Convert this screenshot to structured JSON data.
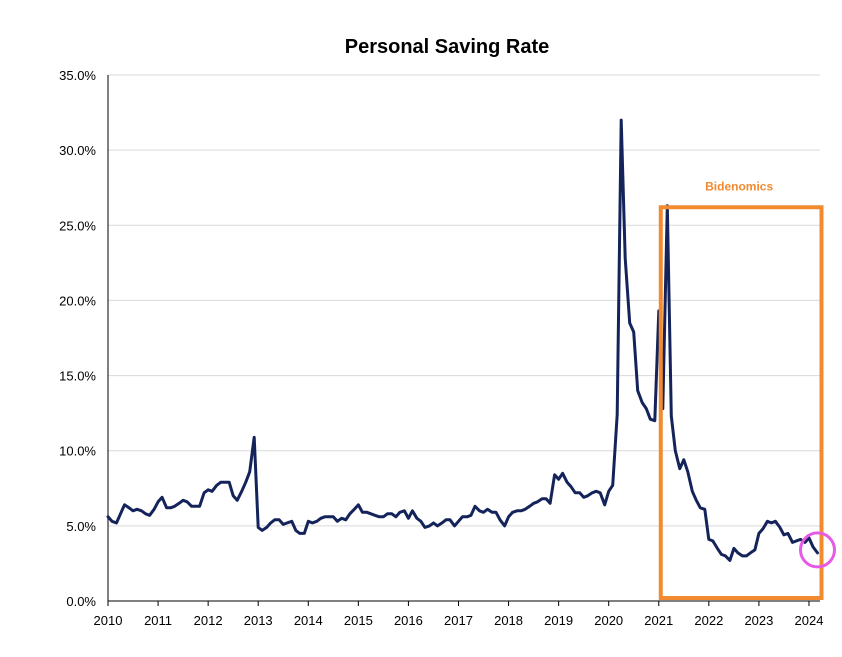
{
  "chart_data": {
    "type": "line",
    "title": "Personal Saving Rate",
    "xlabel": "",
    "ylabel": "",
    "x_tick_labels": [
      "2010",
      "2011",
      "2012",
      "2013",
      "2014",
      "2015",
      "2016",
      "2017",
      "2018",
      "2019",
      "2020",
      "2021",
      "2022",
      "2023",
      "2024"
    ],
    "y_tick_labels": [
      "0.0%",
      "5.0%",
      "10.0%",
      "15.0%",
      "20.0%",
      "25.0%",
      "30.0%",
      "35.0%"
    ],
    "y_ticks": [
      0,
      5,
      10,
      15,
      20,
      25,
      30,
      35
    ],
    "x_ticks": [
      2010,
      2011,
      2012,
      2013,
      2014,
      2015,
      2016,
      2017,
      2018,
      2019,
      2020,
      2021,
      2022,
      2023,
      2024
    ],
    "xlim": [
      2010,
      2024.25
    ],
    "ylim": [
      0,
      35
    ],
    "grid": true,
    "series": [
      {
        "name": "Personal Saving Rate",
        "color": "#14245a",
        "points": [
          [
            2010.0,
            5.6
          ],
          [
            2010.08,
            5.3
          ],
          [
            2010.17,
            5.2
          ],
          [
            2010.25,
            5.8
          ],
          [
            2010.33,
            6.4
          ],
          [
            2010.42,
            6.2
          ],
          [
            2010.5,
            6.0
          ],
          [
            2010.58,
            6.1
          ],
          [
            2010.67,
            6.0
          ],
          [
            2010.75,
            5.8
          ],
          [
            2010.83,
            5.7
          ],
          [
            2010.92,
            6.1
          ],
          [
            2011.0,
            6.6
          ],
          [
            2011.08,
            6.9
          ],
          [
            2011.17,
            6.2
          ],
          [
            2011.25,
            6.2
          ],
          [
            2011.33,
            6.3
          ],
          [
            2011.42,
            6.5
          ],
          [
            2011.5,
            6.7
          ],
          [
            2011.58,
            6.6
          ],
          [
            2011.67,
            6.3
          ],
          [
            2011.75,
            6.3
          ],
          [
            2011.83,
            6.3
          ],
          [
            2011.92,
            7.2
          ],
          [
            2012.0,
            7.4
          ],
          [
            2012.08,
            7.3
          ],
          [
            2012.17,
            7.7
          ],
          [
            2012.25,
            7.9
          ],
          [
            2012.33,
            7.9
          ],
          [
            2012.42,
            7.9
          ],
          [
            2012.5,
            7.0
          ],
          [
            2012.58,
            6.7
          ],
          [
            2012.67,
            7.3
          ],
          [
            2012.75,
            7.9
          ],
          [
            2012.83,
            8.6
          ],
          [
            2012.92,
            10.9
          ],
          [
            2013.0,
            4.9
          ],
          [
            2013.08,
            4.7
          ],
          [
            2013.17,
            4.9
          ],
          [
            2013.25,
            5.2
          ],
          [
            2013.33,
            5.4
          ],
          [
            2013.42,
            5.4
          ],
          [
            2013.5,
            5.1
          ],
          [
            2013.58,
            5.2
          ],
          [
            2013.67,
            5.3
          ],
          [
            2013.75,
            4.7
          ],
          [
            2013.83,
            4.5
          ],
          [
            2013.92,
            4.5
          ],
          [
            2014.0,
            5.3
          ],
          [
            2014.08,
            5.2
          ],
          [
            2014.17,
            5.3
          ],
          [
            2014.25,
            5.5
          ],
          [
            2014.33,
            5.6
          ],
          [
            2014.42,
            5.6
          ],
          [
            2014.5,
            5.6
          ],
          [
            2014.58,
            5.3
          ],
          [
            2014.67,
            5.5
          ],
          [
            2014.75,
            5.4
          ],
          [
            2014.83,
            5.8
          ],
          [
            2014.92,
            6.1
          ],
          [
            2015.0,
            6.4
          ],
          [
            2015.08,
            5.9
          ],
          [
            2015.17,
            5.9
          ],
          [
            2015.25,
            5.8
          ],
          [
            2015.33,
            5.7
          ],
          [
            2015.42,
            5.6
          ],
          [
            2015.5,
            5.6
          ],
          [
            2015.58,
            5.8
          ],
          [
            2015.67,
            5.8
          ],
          [
            2015.75,
            5.6
          ],
          [
            2015.83,
            5.9
          ],
          [
            2015.92,
            6.0
          ],
          [
            2016.0,
            5.5
          ],
          [
            2016.08,
            6.0
          ],
          [
            2016.17,
            5.5
          ],
          [
            2016.25,
            5.3
          ],
          [
            2016.33,
            4.9
          ],
          [
            2016.42,
            5.0
          ],
          [
            2016.5,
            5.2
          ],
          [
            2016.58,
            5.0
          ],
          [
            2016.67,
            5.2
          ],
          [
            2016.75,
            5.4
          ],
          [
            2016.83,
            5.4
          ],
          [
            2016.92,
            5.0
          ],
          [
            2017.0,
            5.3
          ],
          [
            2017.08,
            5.6
          ],
          [
            2017.17,
            5.6
          ],
          [
            2017.25,
            5.7
          ],
          [
            2017.33,
            6.3
          ],
          [
            2017.42,
            6.0
          ],
          [
            2017.5,
            5.9
          ],
          [
            2017.58,
            6.1
          ],
          [
            2017.67,
            5.9
          ],
          [
            2017.75,
            5.9
          ],
          [
            2017.83,
            5.4
          ],
          [
            2017.92,
            5.0
          ],
          [
            2018.0,
            5.6
          ],
          [
            2018.08,
            5.9
          ],
          [
            2018.17,
            6.0
          ],
          [
            2018.25,
            6.0
          ],
          [
            2018.33,
            6.1
          ],
          [
            2018.42,
            6.3
          ],
          [
            2018.5,
            6.5
          ],
          [
            2018.58,
            6.6
          ],
          [
            2018.67,
            6.8
          ],
          [
            2018.75,
            6.8
          ],
          [
            2018.83,
            6.5
          ],
          [
            2018.92,
            8.4
          ],
          [
            2019.0,
            8.1
          ],
          [
            2019.08,
            8.5
          ],
          [
            2019.17,
            7.9
          ],
          [
            2019.25,
            7.6
          ],
          [
            2019.33,
            7.2
          ],
          [
            2019.42,
            7.2
          ],
          [
            2019.5,
            6.9
          ],
          [
            2019.58,
            7.0
          ],
          [
            2019.67,
            7.2
          ],
          [
            2019.75,
            7.3
          ],
          [
            2019.83,
            7.2
          ],
          [
            2019.92,
            6.4
          ],
          [
            2020.0,
            7.3
          ],
          [
            2020.08,
            7.7
          ],
          [
            2020.17,
            12.4
          ],
          [
            2020.25,
            32.0
          ],
          [
            2020.33,
            22.8
          ],
          [
            2020.42,
            18.5
          ],
          [
            2020.5,
            17.9
          ],
          [
            2020.58,
            14.0
          ],
          [
            2020.67,
            13.2
          ],
          [
            2020.75,
            12.8
          ],
          [
            2020.83,
            12.1
          ],
          [
            2020.92,
            12.0
          ],
          [
            2021.0,
            19.3
          ],
          [
            2021.08,
            12.8
          ],
          [
            2021.17,
            26.3
          ],
          [
            2021.25,
            12.3
          ],
          [
            2021.33,
            10.0
          ],
          [
            2021.42,
            8.8
          ],
          [
            2021.5,
            9.4
          ],
          [
            2021.58,
            8.6
          ],
          [
            2021.67,
            7.3
          ],
          [
            2021.75,
            6.7
          ],
          [
            2021.83,
            6.2
          ],
          [
            2021.92,
            6.1
          ],
          [
            2022.0,
            4.1
          ],
          [
            2022.08,
            4.0
          ],
          [
            2022.17,
            3.5
          ],
          [
            2022.25,
            3.1
          ],
          [
            2022.33,
            3.0
          ],
          [
            2022.42,
            2.7
          ],
          [
            2022.5,
            3.5
          ],
          [
            2022.58,
            3.2
          ],
          [
            2022.67,
            3.0
          ],
          [
            2022.75,
            3.0
          ],
          [
            2022.83,
            3.2
          ],
          [
            2022.92,
            3.4
          ],
          [
            2023.0,
            4.5
          ],
          [
            2023.08,
            4.8
          ],
          [
            2023.17,
            5.3
          ],
          [
            2023.25,
            5.2
          ],
          [
            2023.33,
            5.3
          ],
          [
            2023.42,
            4.9
          ],
          [
            2023.5,
            4.4
          ],
          [
            2023.58,
            4.5
          ],
          [
            2023.67,
            3.9
          ],
          [
            2023.75,
            4.0
          ],
          [
            2023.83,
            4.1
          ],
          [
            2023.92,
            3.9
          ],
          [
            2024.0,
            4.2
          ],
          [
            2024.08,
            3.6
          ],
          [
            2024.17,
            3.2
          ]
        ]
      }
    ],
    "annotations": {
      "box": {
        "label": "Bidenomics",
        "color": "#f28a30",
        "x_start": 2021.0,
        "x_end": 2024.25,
        "y_low": 0.0,
        "y_high": 26.2
      },
      "circle": {
        "color": "#e65ae6",
        "x": 2024.17,
        "y": 3.4
      }
    }
  }
}
